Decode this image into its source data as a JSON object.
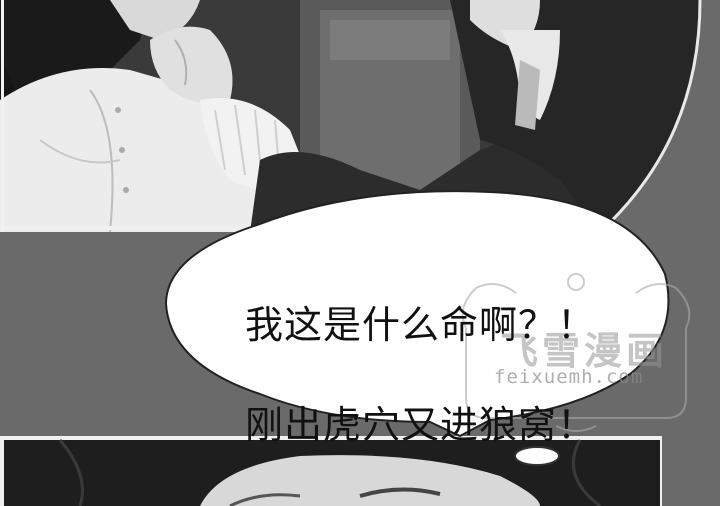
{
  "dialogue": {
    "line1": "我这是什么命啊？！",
    "line2": "刚出虎穴又进狼窝！"
  },
  "watermark": {
    "brand": "飞雪漫画",
    "url": "feixuemh.com"
  },
  "colors": {
    "background": "#6a6a6a",
    "bubble": "#ffffff",
    "text": "#111111"
  }
}
